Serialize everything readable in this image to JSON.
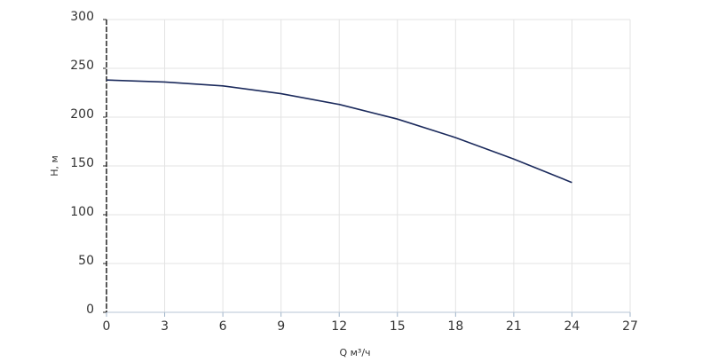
{
  "chart_data": {
    "type": "line",
    "x_label": "Q м³/ч",
    "y_label": "H, м",
    "x": [
      0,
      3,
      6,
      9,
      12,
      15,
      18,
      21,
      24
    ],
    "series": [
      {
        "color": "#1b2a5c",
        "values": [
          238,
          236,
          232,
          224,
          213,
          198,
          179,
          157,
          133
        ]
      }
    ],
    "xlim": [
      0,
      27
    ],
    "xticks": [
      0,
      3,
      6,
      9,
      12,
      15,
      18,
      21,
      24,
      27
    ],
    "ylim": [
      0,
      300
    ],
    "yticks": [
      0,
      50,
      100,
      150,
      200,
      250,
      300
    ],
    "grid": true
  }
}
